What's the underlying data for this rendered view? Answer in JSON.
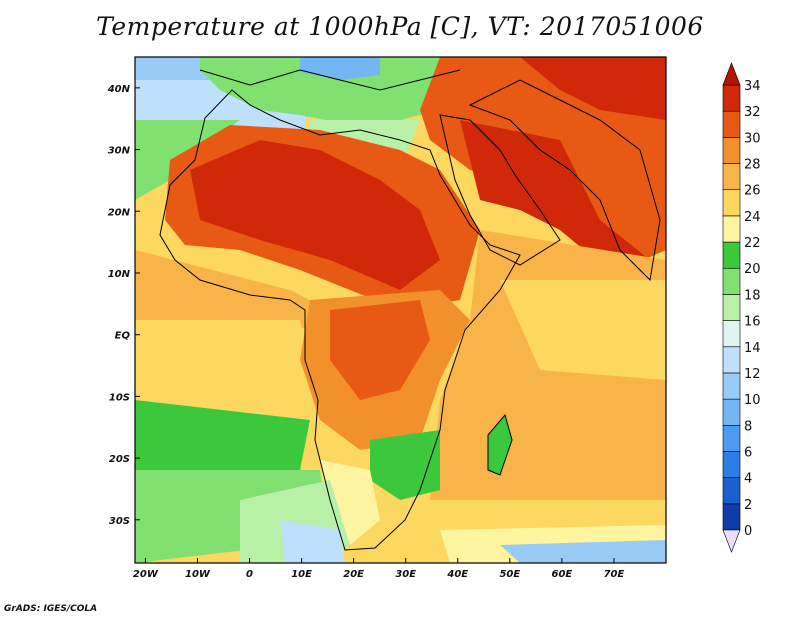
{
  "title": "Temperature at 1000hPa [C], VT: 2017051006",
  "credit": "GrADS: IGES/COLA",
  "map": {
    "lon_range": [
      -22,
      80
    ],
    "lat_range": [
      -37,
      45
    ],
    "lon_ticks": [
      {
        "value": -20,
        "label": "20W"
      },
      {
        "value": -10,
        "label": "10W"
      },
      {
        "value": 0,
        "label": "0"
      },
      {
        "value": 10,
        "label": "10E"
      },
      {
        "value": 20,
        "label": "20E"
      },
      {
        "value": 30,
        "label": "30E"
      },
      {
        "value": 40,
        "label": "40E"
      },
      {
        "value": 50,
        "label": "50E"
      },
      {
        "value": 60,
        "label": "60E"
      },
      {
        "value": 70,
        "label": "70E"
      }
    ],
    "lat_ticks": [
      {
        "value": 40,
        "label": "40N"
      },
      {
        "value": 30,
        "label": "30N"
      },
      {
        "value": 20,
        "label": "20N"
      },
      {
        "value": 10,
        "label": "10N"
      },
      {
        "value": 0,
        "label": "EQ"
      },
      {
        "value": -10,
        "label": "10S"
      },
      {
        "value": -20,
        "label": "20S"
      },
      {
        "value": -30,
        "label": "30S"
      }
    ]
  },
  "colorbar": {
    "levels": [
      {
        "value": "0",
        "color": "#0a1e6e"
      },
      {
        "value": "2",
        "color": "#0f3ca8"
      },
      {
        "value": "4",
        "color": "#1a5fd0"
      },
      {
        "value": "6",
        "color": "#2a7fe6"
      },
      {
        "value": "8",
        "color": "#4b9cf0"
      },
      {
        "value": "10",
        "color": "#73b6f4"
      },
      {
        "value": "12",
        "color": "#98cbf6"
      },
      {
        "value": "14",
        "color": "#bfe0fa"
      },
      {
        "value": "16",
        "color": "#e0f4f4"
      },
      {
        "value": "18",
        "color": "#b8f0a8"
      },
      {
        "value": "20",
        "color": "#80e070"
      },
      {
        "value": "22",
        "color": "#3cc83c"
      },
      {
        "value": "24",
        "color": "#fff4a0"
      },
      {
        "value": "26",
        "color": "#fcd860"
      },
      {
        "value": "28",
        "color": "#f8b448"
      },
      {
        "value": "30",
        "color": "#f2902c"
      },
      {
        "value": "32",
        "color": "#e85a14"
      },
      {
        "value": "34",
        "color": "#d02808"
      }
    ],
    "under_color": "#e8e0f8",
    "over_color": "#b41400"
  }
}
